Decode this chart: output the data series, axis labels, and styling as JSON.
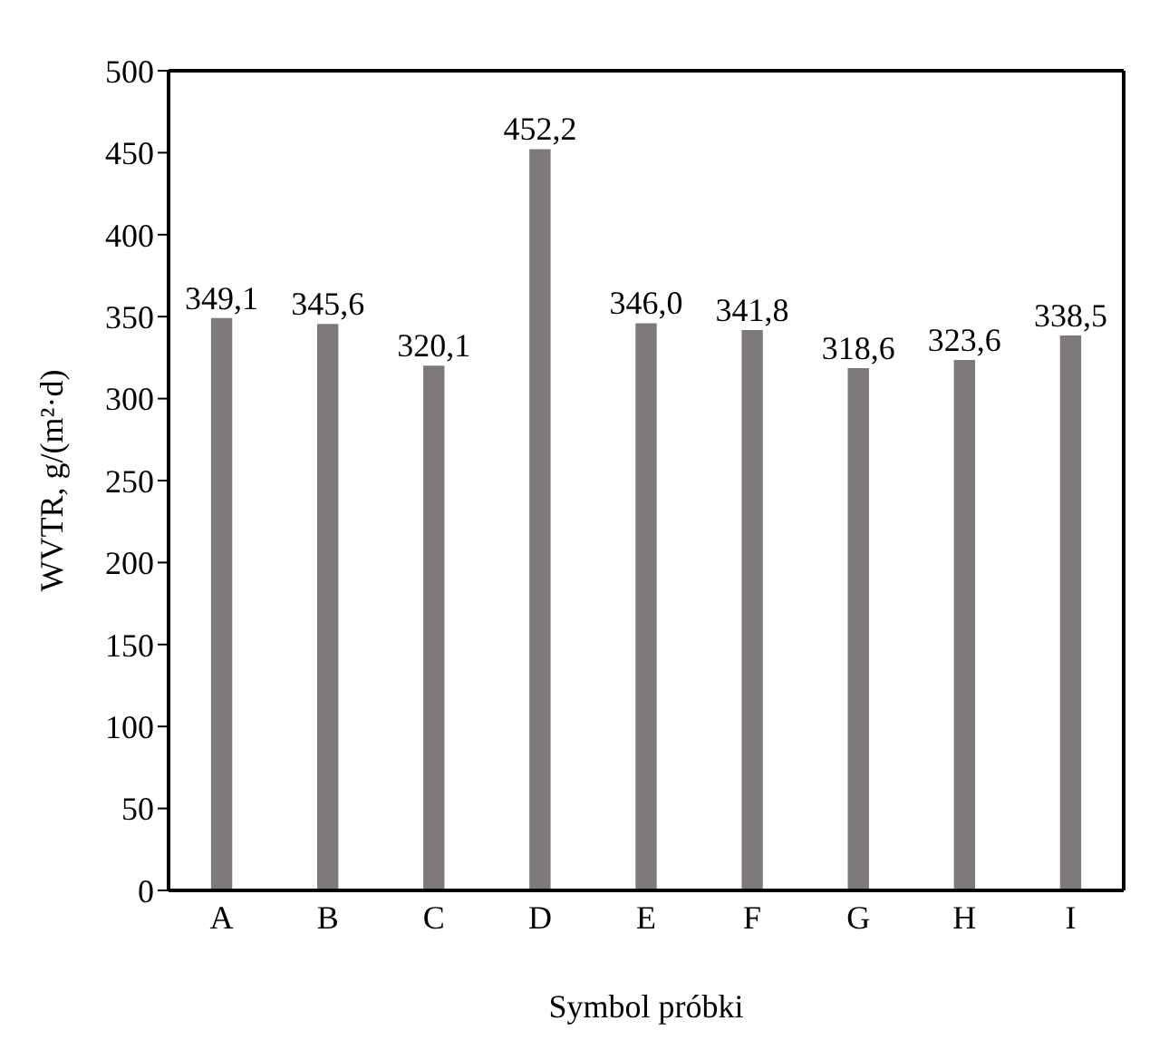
{
  "chart_data": {
    "type": "bar",
    "xlabel": "Symbol próbki",
    "ylabel": "WVTR, g/(m²·d)",
    "categories": [
      "A",
      "B",
      "C",
      "D",
      "E",
      "F",
      "G",
      "H",
      "I"
    ],
    "values": [
      349.1,
      345.6,
      320.1,
      452.2,
      346.0,
      341.8,
      318.6,
      323.6,
      338.5
    ],
    "value_labels": [
      "349,1",
      "345,6",
      "320,1",
      "452,2",
      "346,0",
      "341,8",
      "318,6",
      "323,6",
      "338,5"
    ],
    "color": "#7f7a7a",
    "ylim": [
      0,
      500
    ],
    "yticks": [
      0,
      50,
      100,
      150,
      200,
      250,
      300,
      350,
      400,
      450,
      500
    ],
    "grid": false,
    "legend": false
  }
}
